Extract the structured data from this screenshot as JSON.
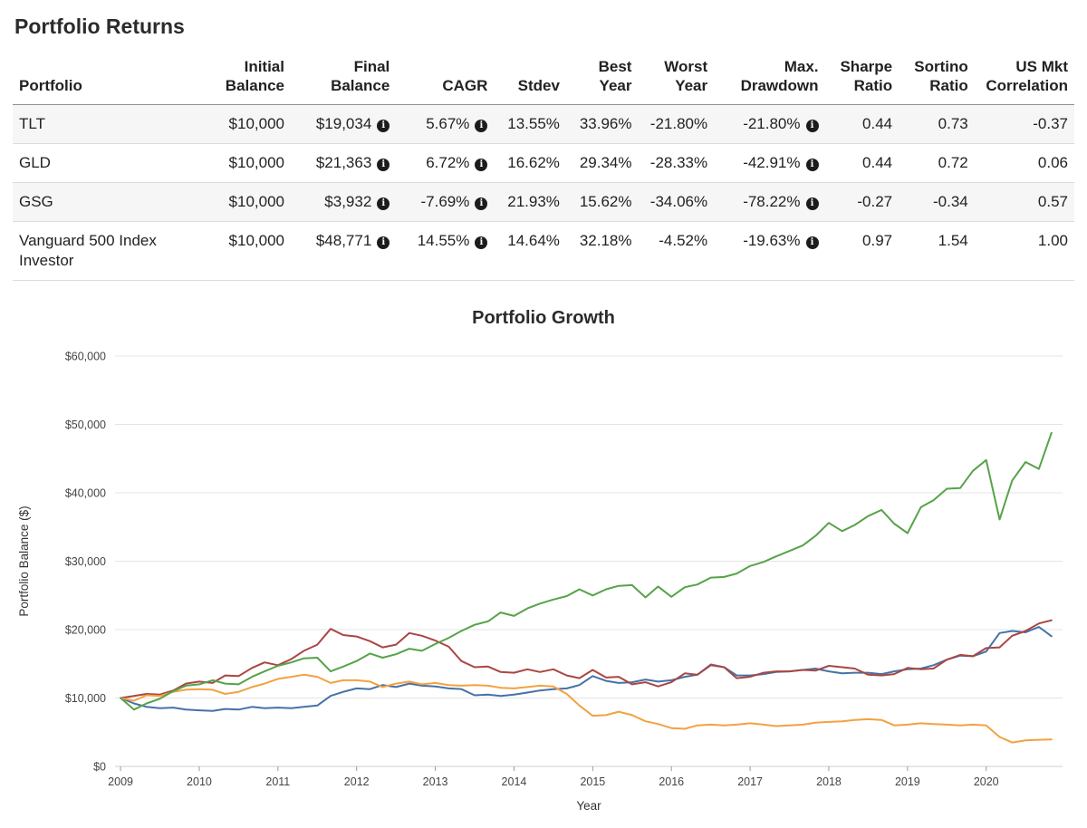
{
  "page": {
    "title": "Portfolio Returns"
  },
  "icons": {
    "info": "i"
  },
  "table": {
    "headers": [
      "Portfolio",
      "Initial Balance",
      "Final Balance",
      "CAGR",
      "Stdev",
      "Best Year",
      "Worst Year",
      "Max. Drawdown",
      "Sharpe Ratio",
      "Sortino Ratio",
      "US Mkt Correlation"
    ],
    "rows": [
      {
        "portfolio": "TLT",
        "initial": "$10,000",
        "final": "$19,034",
        "cagr": "5.67%",
        "stdev": "13.55%",
        "best": "33.96%",
        "worst": "-21.80%",
        "maxdd": "-21.80%",
        "sharpe": "0.44",
        "sortino": "0.73",
        "uscorr": "-0.37"
      },
      {
        "portfolio": "GLD",
        "initial": "$10,000",
        "final": "$21,363",
        "cagr": "6.72%",
        "stdev": "16.62%",
        "best": "29.34%",
        "worst": "-28.33%",
        "maxdd": "-42.91%",
        "sharpe": "0.44",
        "sortino": "0.72",
        "uscorr": "0.06"
      },
      {
        "portfolio": "GSG",
        "initial": "$10,000",
        "final": "$3,932",
        "cagr": "-7.69%",
        "stdev": "21.93%",
        "best": "15.62%",
        "worst": "-34.06%",
        "maxdd": "-78.22%",
        "sharpe": "-0.27",
        "sortino": "-0.34",
        "uscorr": "0.57"
      },
      {
        "portfolio": "Vanguard 500 Index Investor",
        "initial": "$10,000",
        "final": "$48,771",
        "cagr": "14.55%",
        "stdev": "14.64%",
        "best": "32.18%",
        "worst": "-4.52%",
        "maxdd": "-19.63%",
        "sharpe": "0.97",
        "sortino": "1.54",
        "uscorr": "1.00"
      }
    ]
  },
  "chart_data": {
    "type": "line",
    "title": "Portfolio Growth",
    "xlabel": "Year",
    "ylabel": "Portfolio Balance ($)",
    "xlim": [
      2008.93,
      2020.97
    ],
    "ylim": [
      0,
      60000
    ],
    "xticks": [
      2009,
      2010,
      2011,
      2012,
      2013,
      2014,
      2015,
      2016,
      2017,
      2018,
      2019,
      2020
    ],
    "yticks": [
      0,
      10000,
      20000,
      30000,
      40000,
      50000,
      60000
    ],
    "ytick_labels": [
      "$0",
      "$10,000",
      "$20,000",
      "$30,000",
      "$40,000",
      "$50,000",
      "$60,000"
    ],
    "grid": "horizontal",
    "legend": "none",
    "x": [
      2009.0,
      2009.17,
      2009.33,
      2009.5,
      2009.67,
      2009.83,
      2010.0,
      2010.17,
      2010.33,
      2010.5,
      2010.67,
      2010.83,
      2011.0,
      2011.17,
      2011.33,
      2011.5,
      2011.67,
      2011.83,
      2012.0,
      2012.17,
      2012.33,
      2012.5,
      2012.67,
      2012.83,
      2013.0,
      2013.17,
      2013.33,
      2013.5,
      2013.67,
      2013.83,
      2014.0,
      2014.17,
      2014.33,
      2014.5,
      2014.67,
      2014.83,
      2015.0,
      2015.17,
      2015.33,
      2015.5,
      2015.67,
      2015.83,
      2016.0,
      2016.17,
      2016.33,
      2016.5,
      2016.67,
      2016.83,
      2017.0,
      2017.17,
      2017.33,
      2017.5,
      2017.67,
      2017.83,
      2018.0,
      2018.17,
      2018.33,
      2018.5,
      2018.67,
      2018.83,
      2019.0,
      2019.17,
      2019.33,
      2019.5,
      2019.67,
      2019.83,
      2020.0,
      2020.17,
      2020.33,
      2020.5,
      2020.67,
      2020.83
    ],
    "series": [
      {
        "name": "TLT",
        "color": "#4572a7",
        "values": [
          10000,
          9200,
          8700,
          8500,
          8600,
          8300,
          8200,
          8100,
          8400,
          8300,
          8700,
          8500,
          8600,
          8500,
          8700,
          8900,
          10300,
          10900,
          11400,
          11300,
          11900,
          11600,
          12100,
          11800,
          11700,
          11400,
          11300,
          10400,
          10500,
          10300,
          10500,
          10800,
          11100,
          11300,
          11400,
          11900,
          13200,
          12500,
          12200,
          12300,
          12700,
          12400,
          12600,
          13100,
          13400,
          14900,
          14500,
          13300,
          13300,
          13500,
          13800,
          13900,
          14100,
          14300,
          13900,
          13600,
          13700,
          13700,
          13500,
          13900,
          14200,
          14300,
          14800,
          15600,
          16200,
          16100,
          16800,
          19500,
          19800,
          19600,
          20400,
          19034
        ]
      },
      {
        "name": "GLD",
        "color": "#aa4643",
        "values": [
          10000,
          10300,
          10600,
          10500,
          11100,
          12100,
          12400,
          12200,
          13300,
          13200,
          14400,
          15200,
          14800,
          15700,
          16900,
          17800,
          20100,
          19200,
          19000,
          18300,
          17400,
          17800,
          19500,
          19100,
          18400,
          17500,
          15400,
          14500,
          14600,
          13800,
          13700,
          14200,
          13800,
          14200,
          13300,
          12900,
          14100,
          13000,
          13100,
          12000,
          12300,
          11700,
          12300,
          13600,
          13400,
          14800,
          14500,
          12900,
          13100,
          13700,
          13900,
          13900,
          14100,
          14000,
          14700,
          14500,
          14300,
          13400,
          13300,
          13500,
          14400,
          14200,
          14300,
          15600,
          16300,
          16100,
          17300,
          17400,
          19100,
          19800,
          20900,
          21363
        ]
      },
      {
        "name": "GSG",
        "color": "#f2a241",
        "values": [
          10000,
          9600,
          10400,
          10300,
          10900,
          11200,
          11300,
          11200,
          10600,
          10900,
          11600,
          12100,
          12800,
          13100,
          13400,
          13100,
          12200,
          12600,
          12600,
          12400,
          11600,
          12100,
          12400,
          12000,
          12200,
          11900,
          11800,
          11900,
          11800,
          11500,
          11400,
          11600,
          11800,
          11700,
          10600,
          8900,
          7400,
          7500,
          8000,
          7500,
          6600,
          6200,
          5600,
          5500,
          6000,
          6100,
          6000,
          6100,
          6300,
          6100,
          5900,
          6000,
          6100,
          6400,
          6500,
          6600,
          6800,
          6900,
          6800,
          6000,
          6100,
          6300,
          6200,
          6100,
          6000,
          6100,
          6000,
          4300,
          3500,
          3800,
          3900,
          3932
        ]
      },
      {
        "name": "Vanguard 500 Index Investor",
        "color": "#57a249",
        "values": [
          10000,
          8300,
          9200,
          9900,
          11000,
          11800,
          12000,
          12600,
          12100,
          12000,
          13100,
          13900,
          14700,
          15200,
          15800,
          15900,
          13900,
          14600,
          15400,
          16500,
          15900,
          16400,
          17200,
          16900,
          17900,
          18800,
          19800,
          20700,
          21200,
          22500,
          22000,
          23100,
          23800,
          24400,
          24900,
          25900,
          25000,
          25900,
          26400,
          26500,
          24700,
          26300,
          24800,
          26200,
          26600,
          27600,
          27700,
          28200,
          29300,
          29900,
          30700,
          31500,
          32300,
          33700,
          35600,
          34400,
          35300,
          36600,
          37500,
          35500,
          34100,
          37900,
          38900,
          40600,
          40700,
          43200,
          44800,
          36100,
          41800,
          44500,
          43500,
          48771
        ]
      }
    ]
  }
}
